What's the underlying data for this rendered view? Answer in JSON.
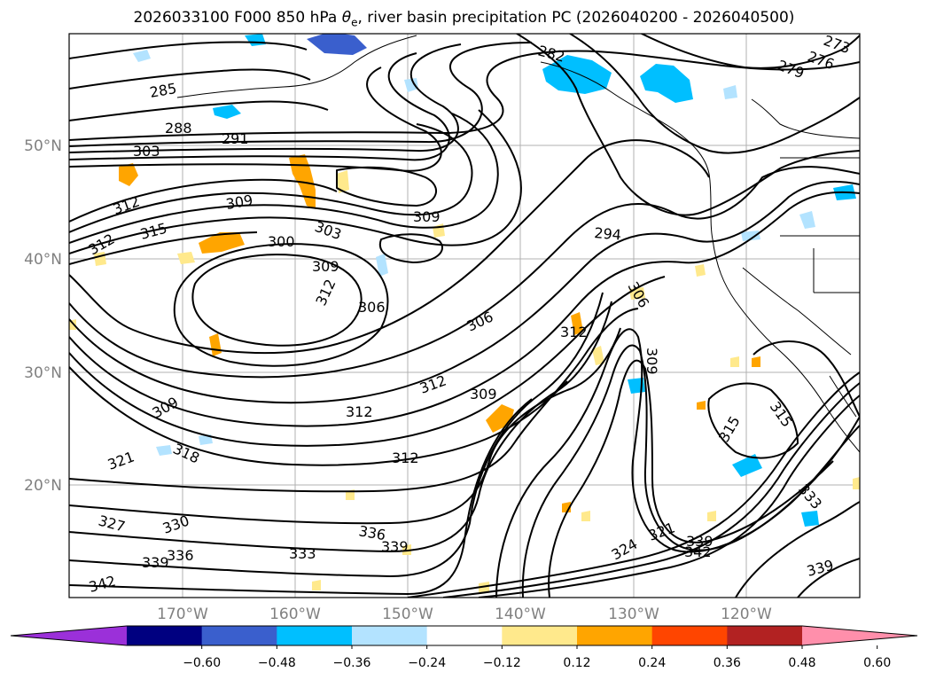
{
  "title": {
    "prefix": "2026033100 F000 850 hPa ",
    "symbol": "θ",
    "subscript": "e",
    "suffix": ", river basin precipitation PC (2026040200 - 2026040500)"
  },
  "map": {
    "lat_labels": [
      "50°N",
      "40°N",
      "30°N",
      "20°N"
    ],
    "lon_labels": [
      "170°W",
      "160°W",
      "150°W",
      "140°W",
      "130°W",
      "120°W"
    ],
    "contour_labels": [
      "273",
      "276",
      "279",
      "282",
      "285",
      "288",
      "291",
      "294",
      "300",
      "303",
      "303",
      "306",
      "306",
      "306",
      "309",
      "309",
      "309",
      "309",
      "309",
      "309",
      "312",
      "312",
      "312",
      "312",
      "312",
      "312",
      "312",
      "315",
      "315",
      "315",
      "318",
      "321",
      "321",
      "324",
      "327",
      "330",
      "333",
      "333",
      "336",
      "336",
      "339",
      "339",
      "339",
      "339",
      "342",
      "342"
    ],
    "colors": {
      "positive_fill": "#ffa500",
      "positive_light": "#ffe98c",
      "negative_fill": "#00bfff",
      "negative_light": "#b3e3ff",
      "contour": "#000000",
      "grid": "#9e9e9e"
    }
  },
  "colorbar": {
    "ticks": [
      "−0.60",
      "−0.48",
      "−0.36",
      "−0.24",
      "−0.12",
      "0.12",
      "0.24",
      "0.36",
      "0.48",
      "0.60"
    ],
    "colors": [
      "#9b30d9",
      "#000080",
      "#3a5fcd",
      "#00bfff",
      "#b3e3ff",
      "#ffffff",
      "#ffe98c",
      "#ffa500",
      "#ff4500",
      "#b22222",
      "#ff8fab"
    ]
  }
}
